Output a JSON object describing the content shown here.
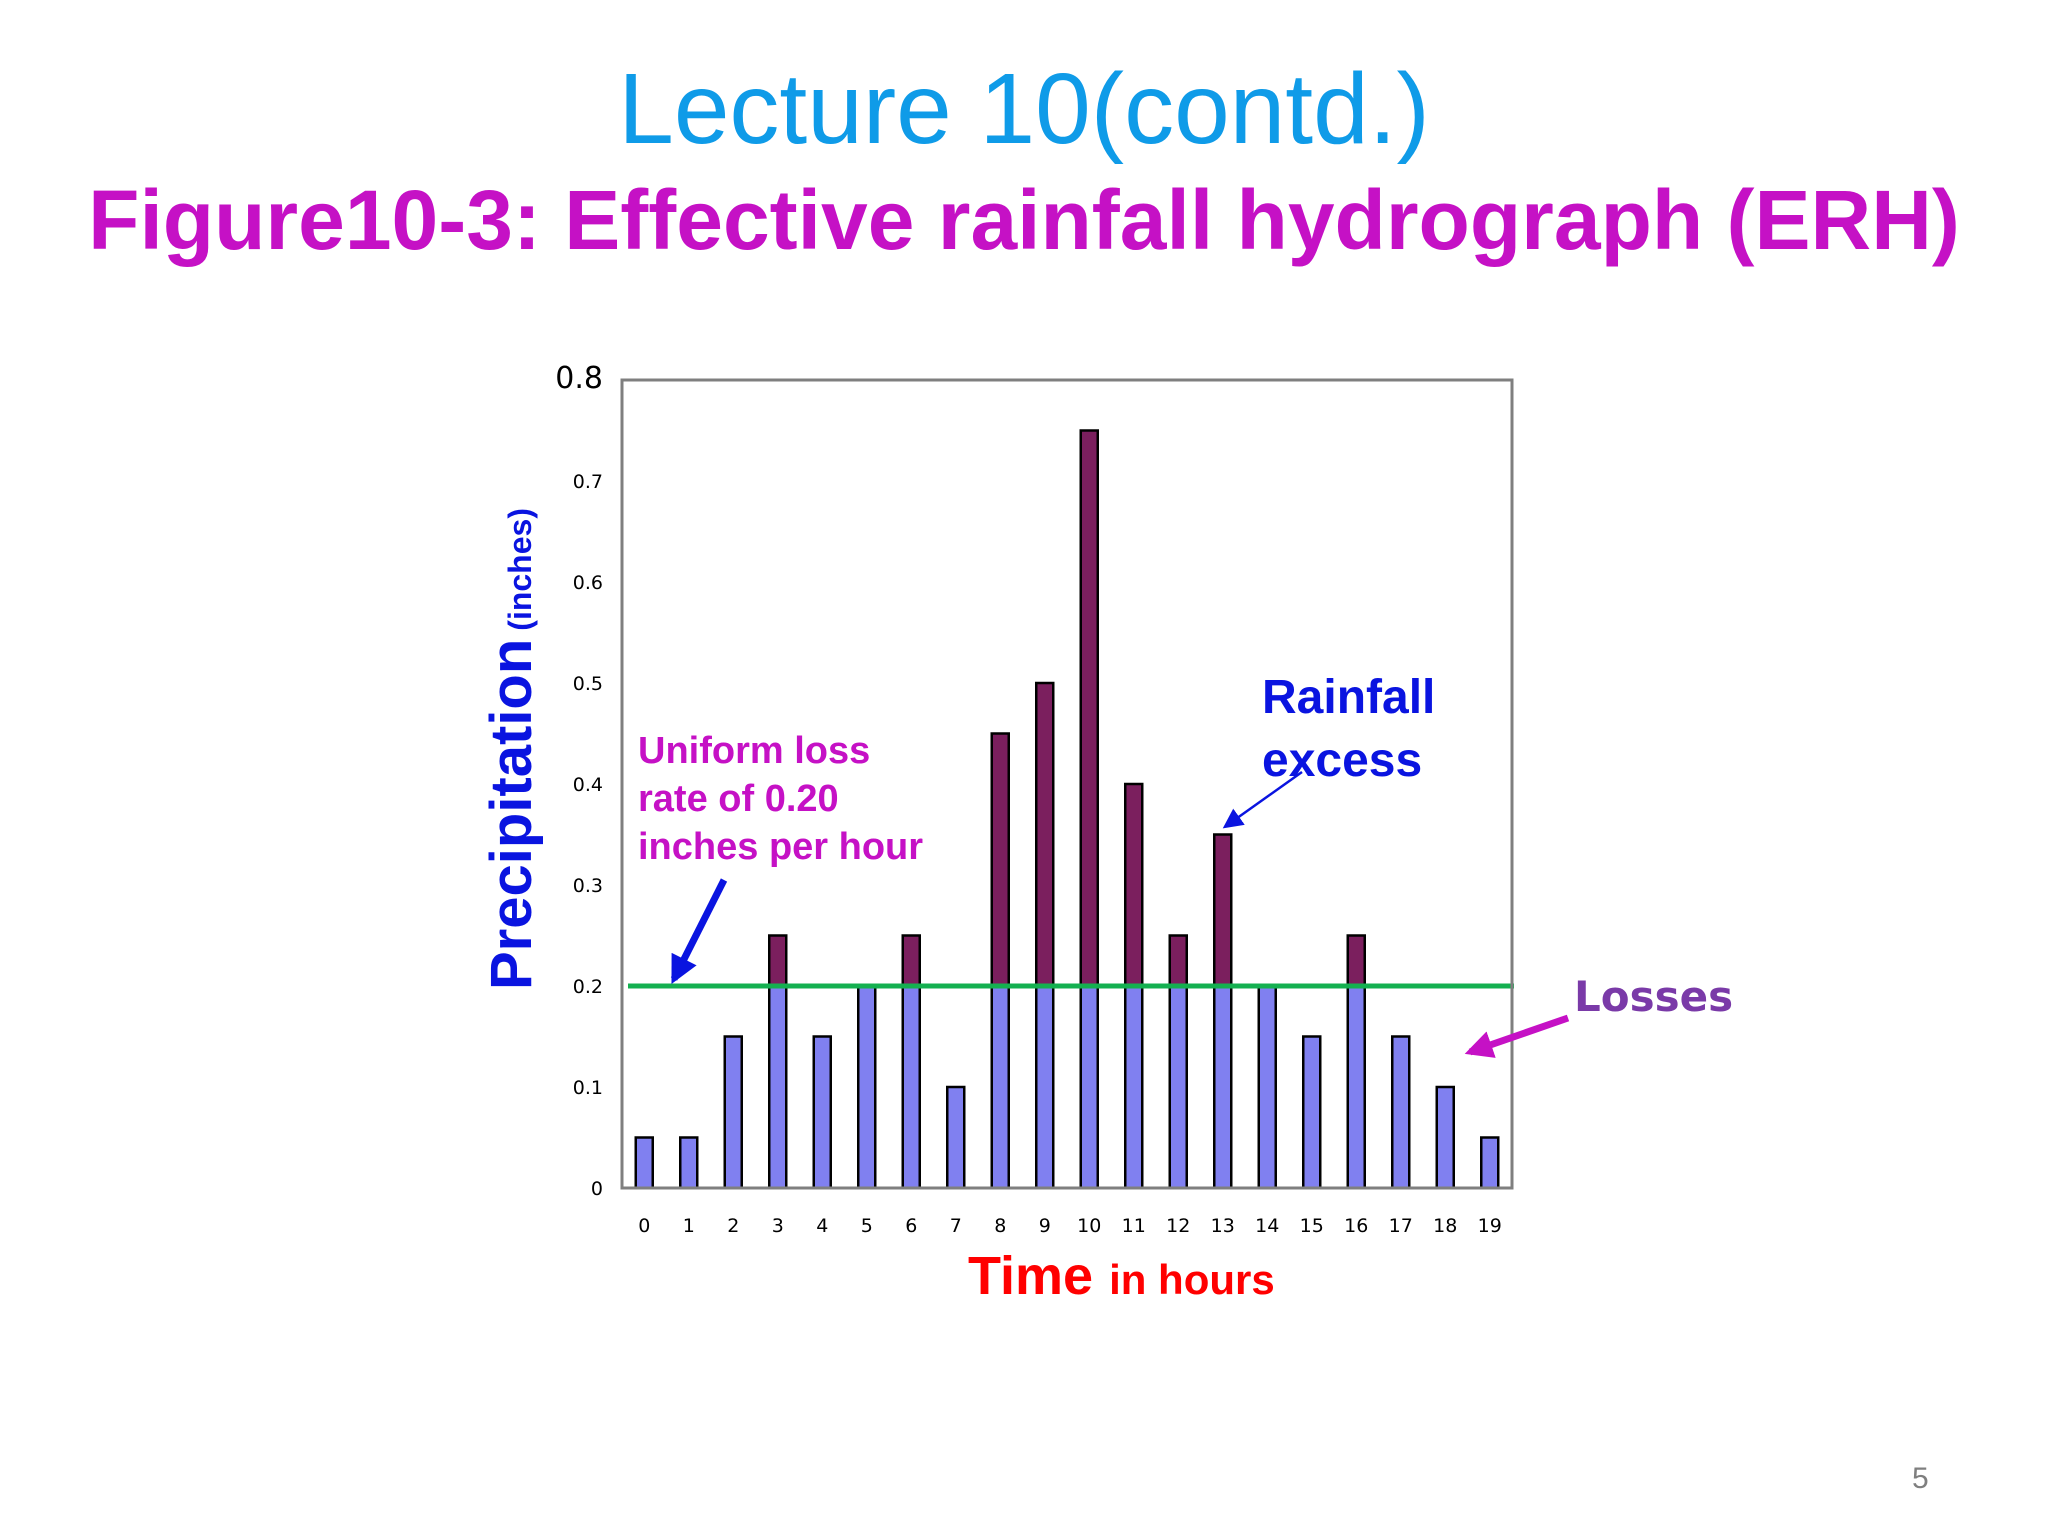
{
  "slide": {
    "title": "Lecture 10(contd.)",
    "page_number": "5"
  },
  "chart_data": {
    "type": "bar",
    "title": "Figure10-3: Effective rainfall hydrograph (ERH)",
    "xlabel": "Time",
    "xlabel_unit": "in hours",
    "ylabel": "Precipitation",
    "ylabel_unit": "(inches)",
    "ylim": [
      0,
      0.8
    ],
    "yticks": [
      0,
      0.1,
      0.2,
      0.3,
      0.4,
      0.5,
      0.6,
      0.7,
      0.8
    ],
    "ytick_labels": [
      "0",
      "0.1",
      "0.2",
      "0.3",
      "0.4",
      "0.5",
      "0.6",
      "0.7",
      "0.8"
    ],
    "categories": [
      "0",
      "1",
      "2",
      "3",
      "4",
      "5",
      "6",
      "7",
      "8",
      "9",
      "10",
      "11",
      "12",
      "13",
      "14",
      "15",
      "16",
      "17",
      "18",
      "19"
    ],
    "values": [
      0.05,
      0.05,
      0.15,
      0.25,
      0.15,
      0.2,
      0.25,
      0.1,
      0.45,
      0.5,
      0.75,
      0.4,
      0.25,
      0.35,
      0.2,
      0.15,
      0.25,
      0.15,
      0.1,
      0.05
    ],
    "loss_rate": 0.2,
    "colors": {
      "losses": "#8080f0",
      "excess": "#7b1f5e",
      "loss_line": "#14b050",
      "bar_outline": "#000000"
    },
    "grid": false,
    "annotations": {
      "uniform_loss": [
        "Uniform loss",
        "rate of  0.20",
        "inches per hour"
      ],
      "rainfall_excess": [
        "Rainfall",
        "excess"
      ],
      "losses": "Losses"
    }
  }
}
